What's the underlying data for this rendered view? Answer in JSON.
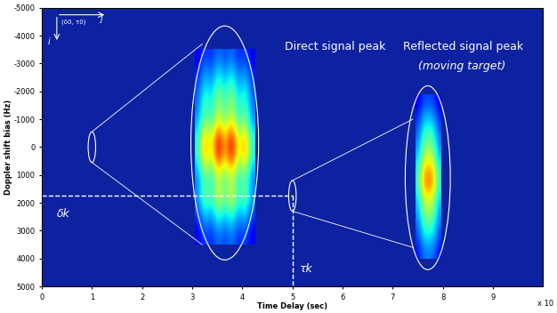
{
  "chart_data": {
    "type": "heatmap",
    "xlabel": "Time Delay (sec)",
    "ylabel": "Doppler shift bias (Hz)",
    "xlim": [
      0,
      10
    ],
    "xticks": [
      0,
      1,
      2,
      3,
      4,
      5,
      6,
      7,
      8,
      9
    ],
    "ylim": [
      5000,
      -5000
    ],
    "yticks": [
      -5000,
      -4000,
      -3000,
      -2000,
      -1000,
      0,
      1000,
      2000,
      3000,
      4000,
      5000
    ],
    "x_multiplier": "x 10",
    "annotations": {
      "origin": "(δ0, τ0)",
      "i": "i",
      "j": "j",
      "direct": "Direct signal peak",
      "reflected": "Reflected signal peak",
      "reflected_note": "(moving target)",
      "delta": "δk",
      "tau": "τk"
    },
    "direct_peak": {
      "x": 1,
      "y": 0
    },
    "reflected_peak": {
      "x": 5,
      "y": 1750
    },
    "cell_range": [
      0,
      1
    ],
    "direct_cells": [
      [
        0.1,
        0.2,
        0.15,
        0.25,
        0.18,
        0.25,
        0.15,
        0.2,
        0.1
      ],
      [
        0.14,
        0.28,
        0.21,
        0.35,
        0.25,
        0.35,
        0.21,
        0.28,
        0.14
      ],
      [
        0.18,
        0.36,
        0.27,
        0.45,
        0.32,
        0.45,
        0.27,
        0.36,
        0.18
      ],
      [
        0.22,
        0.44,
        0.33,
        0.55,
        0.39,
        0.55,
        0.33,
        0.44,
        0.22
      ],
      [
        0.24,
        0.48,
        0.36,
        0.6,
        0.42,
        0.6,
        0.36,
        0.48,
        0.24
      ],
      [
        0.3,
        0.6,
        0.45,
        0.75,
        0.53,
        0.75,
        0.45,
        0.6,
        0.3
      ],
      [
        0.38,
        0.76,
        0.57,
        0.95,
        0.67,
        0.95,
        0.57,
        0.76,
        0.38
      ],
      [
        0.38,
        0.76,
        0.57,
        0.95,
        0.67,
        0.95,
        0.57,
        0.76,
        0.38
      ],
      [
        0.3,
        0.6,
        0.45,
        0.75,
        0.53,
        0.75,
        0.45,
        0.6,
        0.3
      ],
      [
        0.24,
        0.48,
        0.36,
        0.6,
        0.42,
        0.6,
        0.36,
        0.48,
        0.24
      ],
      [
        0.26,
        0.52,
        0.39,
        0.65,
        0.46,
        0.65,
        0.39,
        0.52,
        0.26
      ],
      [
        0.2,
        0.4,
        0.3,
        0.5,
        0.35,
        0.5,
        0.3,
        0.4,
        0.2
      ],
      [
        0.14,
        0.28,
        0.21,
        0.35,
        0.25,
        0.35,
        0.21,
        0.28,
        0.14
      ],
      [
        0.1,
        0.2,
        0.15,
        0.25,
        0.18,
        0.25,
        0.15,
        0.2,
        0.1
      ]
    ],
    "reflected_cells": [
      [
        0.1,
        0.18,
        0.2,
        0.18,
        0.1
      ],
      [
        0.15,
        0.27,
        0.3,
        0.27,
        0.15
      ],
      [
        0.2,
        0.36,
        0.4,
        0.36,
        0.2
      ],
      [
        0.25,
        0.45,
        0.5,
        0.45,
        0.25
      ],
      [
        0.3,
        0.54,
        0.6,
        0.54,
        0.3
      ],
      [
        0.38,
        0.68,
        0.75,
        0.68,
        0.38
      ],
      [
        0.4,
        0.72,
        0.8,
        0.72,
        0.4
      ],
      [
        0.33,
        0.59,
        0.65,
        0.59,
        0.33
      ],
      [
        0.28,
        0.5,
        0.55,
        0.5,
        0.28
      ],
      [
        0.23,
        0.41,
        0.45,
        0.41,
        0.23
      ],
      [
        0.18,
        0.32,
        0.35,
        0.32,
        0.18
      ],
      [
        0.13,
        0.23,
        0.25,
        0.23,
        0.13
      ]
    ]
  }
}
